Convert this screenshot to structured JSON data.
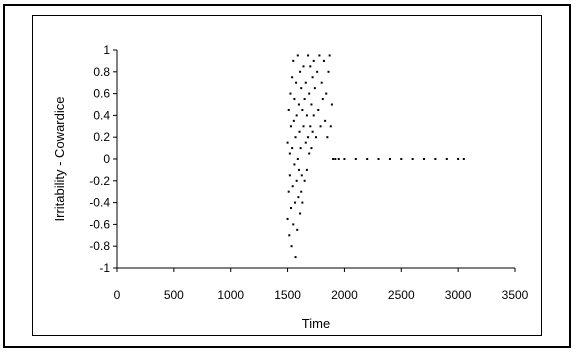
{
  "chart_data": {
    "type": "scatter",
    "title": "",
    "xlabel": "Time",
    "ylabel": "Irritability - Cowardice",
    "xlim": [
      0,
      3500
    ],
    "ylim": [
      -1,
      1
    ],
    "x_ticks": [
      "0",
      "500",
      "1000",
      "1500",
      "2000",
      "2500",
      "3000",
      "3500"
    ],
    "y_ticks": [
      "1",
      "0.8",
      "0.6",
      "0.4",
      "0.2",
      "0",
      "-0.2",
      "-0.4",
      "-0.6",
      "-0.8",
      "-1"
    ],
    "grid": false,
    "legend": "none",
    "marker_color": "#000000",
    "series": [
      {
        "x": [
          1500,
          1500,
          1510,
          1510,
          1515,
          1520,
          1520,
          1525,
          1530,
          1530,
          1535,
          1540,
          1540,
          1545,
          1550,
          1550,
          1555,
          1560,
          1560,
          1565,
          1570,
          1570,
          1575,
          1580,
          1580,
          1585,
          1590,
          1590,
          1595,
          1600,
          1600,
          1605,
          1610,
          1610,
          1615,
          1620,
          1620,
          1625,
          1630,
          1630,
          1640,
          1640,
          1650,
          1650,
          1660,
          1660,
          1670,
          1670,
          1680,
          1680,
          1690,
          1690,
          1700,
          1700,
          1710,
          1710,
          1720,
          1720,
          1730,
          1730,
          1740,
          1750,
          1760,
          1770,
          1780,
          1790,
          1800,
          1810,
          1820,
          1830,
          1840,
          1850,
          1860,
          1870,
          1880,
          1890,
          1900,
          1920,
          1950,
          2000,
          2100,
          2200,
          2300,
          2400,
          2500,
          2600,
          2700,
          2800,
          2900,
          3000,
          3050
        ],
        "y": [
          -0.55,
          0.15,
          -0.3,
          0.45,
          -0.7,
          0.05,
          -0.15,
          0.6,
          -0.45,
          0.3,
          -0.8,
          0.75,
          0.1,
          -0.25,
          0.9,
          -0.6,
          0.35,
          -0.05,
          0.55,
          -0.4,
          0.2,
          -0.9,
          0.7,
          -0.2,
          0.4,
          -0.65,
          0.95,
          0.0,
          -0.35,
          0.5,
          -0.1,
          0.25,
          -0.5,
          0.8,
          0.1,
          -0.3,
          0.65,
          -0.15,
          0.45,
          -0.4,
          0.3,
          0.85,
          -0.2,
          0.55,
          0.15,
          0.7,
          -0.1,
          0.4,
          0.95,
          0.2,
          0.6,
          0.05,
          0.85,
          0.3,
          0.5,
          0.1,
          0.75,
          0.25,
          0.9,
          0.4,
          0.65,
          0.2,
          0.8,
          0.45,
          0.95,
          0.3,
          0.7,
          0.55,
          0.9,
          0.35,
          0.6,
          0.2,
          0.8,
          0.95,
          0.3,
          0.5,
          0.0,
          0.0,
          0.0,
          0.0,
          0.0,
          0.0,
          0.0,
          0.0,
          0.0,
          0.0,
          0.0,
          0.0,
          0.0,
          0.0,
          0.0
        ]
      }
    ]
  }
}
